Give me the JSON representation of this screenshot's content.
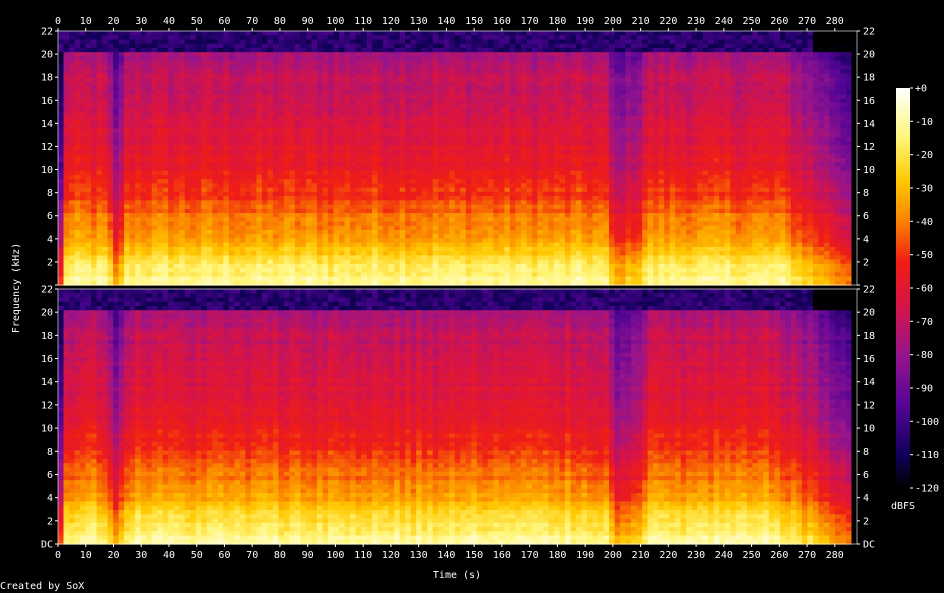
{
  "chart_data": {
    "type": "heatmap",
    "title": "",
    "xlabel": "Time (s)",
    "ylabel": "Frequency (kHz)",
    "xlim": [
      0,
      288
    ],
    "ylim_khz": [
      0,
      22
    ],
    "channels": 2,
    "x_ticks": [
      "0",
      "10",
      "20",
      "30",
      "40",
      "50",
      "60",
      "70",
      "80",
      "90",
      "100",
      "110",
      "120",
      "130",
      "140",
      "150",
      "160",
      "170",
      "180",
      "190",
      "200",
      "210",
      "220",
      "230",
      "240",
      "250",
      "260",
      "270",
      "280"
    ],
    "y_ticks": [
      "DC",
      "2",
      "4",
      "6",
      "8",
      "10",
      "12",
      "14",
      "16",
      "18",
      "20",
      "22"
    ],
    "colorbar": {
      "label": "dBFS",
      "ticks": [
        "+0",
        "-10",
        "-20",
        "-30",
        "-40",
        "-50",
        "-60",
        "-70",
        "-80",
        "-90",
        "-100",
        "-110",
        "-120"
      ],
      "range_dbfs": [
        -120,
        0
      ]
    },
    "spectral_profile": [
      {
        "freq_khz": 0,
        "level_dbfs": -10
      },
      {
        "freq_khz": 2,
        "level_dbfs": -20
      },
      {
        "freq_khz": 4,
        "level_dbfs": -35
      },
      {
        "freq_khz": 6,
        "level_dbfs": -42
      },
      {
        "freq_khz": 8,
        "level_dbfs": -50
      },
      {
        "freq_khz": 10,
        "level_dbfs": -56
      },
      {
        "freq_khz": 12,
        "level_dbfs": -60
      },
      {
        "freq_khz": 14,
        "level_dbfs": -63
      },
      {
        "freq_khz": 16,
        "level_dbfs": -67
      },
      {
        "freq_khz": 18,
        "level_dbfs": -70
      },
      {
        "freq_khz": 20,
        "level_dbfs": -76
      },
      {
        "freq_khz": 20.2,
        "level_dbfs": -108
      },
      {
        "freq_khz": 22,
        "level_dbfs": -112
      }
    ],
    "dips": [
      {
        "time_s": 21,
        "depth_db": 25
      },
      {
        "time_s": 201,
        "depth_db": 20
      },
      {
        "time_s": 205,
        "depth_db": 15
      },
      {
        "time_s": 209,
        "depth_db": 12
      }
    ],
    "fade_out": {
      "start_s": 260,
      "end_s": 287
    }
  },
  "footer": {
    "credit": "Created by SoX"
  },
  "colors": {
    "background": "#000000",
    "text": "#ffffff",
    "axis": "#ffffff"
  }
}
